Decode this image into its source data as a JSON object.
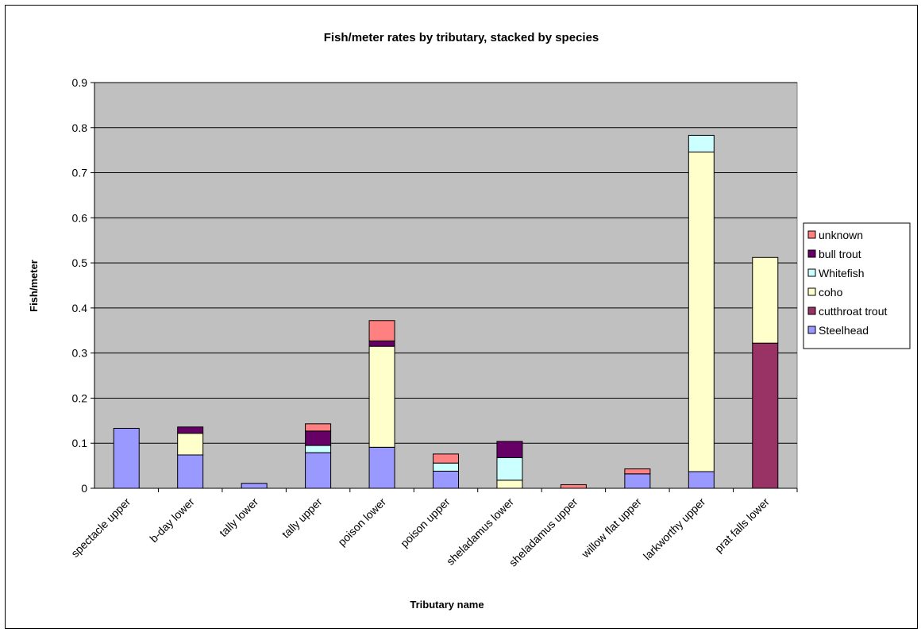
{
  "chart_data": {
    "type": "bar",
    "stacked": true,
    "title": "Fish/meter rates by tributary, stacked by species",
    "xlabel": "Tributary name",
    "ylabel": "Fish/meter",
    "ylim": [
      0,
      0.9
    ],
    "yticks": [
      "0",
      "0.1",
      "0.2",
      "0.3",
      "0.4",
      "0.5",
      "0.6",
      "0.7",
      "0.8",
      "0.9"
    ],
    "grid": true,
    "legend_position": "right",
    "plot_background": "#c0c0c0",
    "categories": [
      "spectacle upper",
      "b-day lower",
      "tally lower",
      "tally upper",
      "poison lower",
      "poison upper",
      "sheladamus lower",
      "sheladamus upper",
      "willow flat upper",
      "larkworthy upper",
      "prat falls lower"
    ],
    "series": [
      {
        "name": "Steelhead",
        "color": "#9999ff",
        "values": [
          0.133,
          0.074,
          0.011,
          0.079,
          0.091,
          0.038,
          0,
          0,
          0.032,
          0.037,
          0
        ]
      },
      {
        "name": "cutthroat trout",
        "color": "#993366",
        "values": [
          0,
          0,
          0,
          0,
          0,
          0,
          0,
          0,
          0,
          0,
          0.322
        ]
      },
      {
        "name": "coho",
        "color": "#ffffcc",
        "values": [
          0,
          0.048,
          0,
          0,
          0.224,
          0,
          0.018,
          0,
          0,
          0.709,
          0.19
        ]
      },
      {
        "name": "Whitefish",
        "color": "#ccffff",
        "values": [
          0,
          0,
          0,
          0.016,
          0,
          0.018,
          0.05,
          0,
          0,
          0.037,
          0
        ]
      },
      {
        "name": "bull trout",
        "color": "#660066",
        "values": [
          0,
          0.014,
          0,
          0.032,
          0.012,
          0,
          0.036,
          0,
          0,
          0,
          0
        ]
      },
      {
        "name": "unknown",
        "color": "#ff8080",
        "values": [
          0,
          0,
          0,
          0.016,
          0.045,
          0.02,
          0,
          0.008,
          0.011,
          0,
          0
        ]
      }
    ]
  }
}
